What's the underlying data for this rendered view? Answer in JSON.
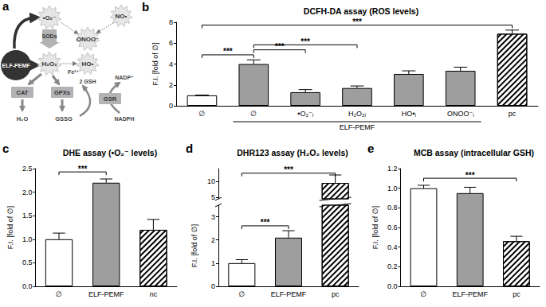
{
  "diagram": {
    "panel": "a",
    "source": "ELF-PEMF",
    "species": {
      "superoxide": "•O₂⁻",
      "peroxynitrite": "ONOO⁻",
      "nitric_oxide": "NO•",
      "hydrogen_peroxide": "H₂O₂",
      "hydroxyl": "HO•"
    },
    "enzymes": {
      "sod": "SODs",
      "cat": "CAT",
      "gpx": "GPXs",
      "gsr": "GSR"
    },
    "labels": {
      "iron": "Fe²⁺",
      "gsh": "2 GSH",
      "nadp": "NADP⁺",
      "water": "H₂O",
      "gssg": "GSSG",
      "nadph": "NADPH"
    }
  },
  "chart_data": [
    {
      "panel": "b",
      "type": "bar",
      "title": "DCFH-DA assay (ROS levels)",
      "ylabel": "F.I. [fold of ∅]",
      "categories": [
        "∅",
        "∅",
        "•O₂⁻ᵢ",
        "H₂O₂ᵢ",
        "HO•ᵢ",
        "ONOO⁻ᵢ",
        "pc"
      ],
      "values": [
        1.0,
        4.0,
        1.3,
        1.7,
        3.05,
        3.35,
        6.9
      ],
      "errors": [
        0.03,
        0.4,
        0.25,
        0.2,
        0.3,
        0.35,
        0.35
      ],
      "colors": [
        "#ffffff",
        "#9e9e9e",
        "#9e9e9e",
        "#9e9e9e",
        "#9e9e9e",
        "#9e9e9e",
        "hatched"
      ],
      "ylim": [
        0,
        8
      ],
      "yticks": [
        0,
        2,
        4,
        6,
        8
      ],
      "significance": [
        {
          "from": 0,
          "to": 1,
          "label": "***"
        },
        {
          "from": 1,
          "to": 2,
          "label": "***"
        },
        {
          "from": 1,
          "to": 3,
          "label": "***"
        },
        {
          "from": 0,
          "to": 6,
          "label": "***"
        }
      ],
      "group_label": {
        "text": "ELF-PEMF",
        "from": 1,
        "to": 5
      }
    },
    {
      "panel": "c",
      "type": "bar",
      "title": "DHE assay (•O₂⁻ levels)",
      "ylabel": "F.I. [fold of ∅]",
      "categories": [
        "∅",
        "ELF-PEMF",
        "nc"
      ],
      "values": [
        1.0,
        2.2,
        1.2
      ],
      "errors": [
        0.13,
        0.08,
        0.22
      ],
      "colors": [
        "#ffffff",
        "#9e9e9e",
        "hatched"
      ],
      "ylim": [
        0,
        2.5
      ],
      "yticks": [
        {
          "value": 0,
          "label": "0.0"
        },
        {
          "value": 0.5,
          "label": "0.5"
        },
        {
          "value": 1,
          "label": "1.0"
        },
        {
          "value": 1.5,
          "label": "1.5"
        },
        {
          "value": 2,
          "label": "2.0"
        },
        {
          "value": 2.5,
          "label": "2.5"
        }
      ],
      "significance": [
        {
          "from": 0,
          "to": 1,
          "label": "***"
        }
      ]
    },
    {
      "panel": "d",
      "type": "bar",
      "title": "DHR123 assay (H₂O₂ levels)",
      "ylabel": "F.I. [fold of ∅]",
      "categories": [
        "∅",
        "ELF-PEMF",
        "pc"
      ],
      "values": [
        1.0,
        2.1,
        9.5
      ],
      "errors": [
        0.15,
        0.3,
        2.5
      ],
      "colors": [
        "#ffffff",
        "#9e9e9e",
        "hatched"
      ],
      "ylim": [
        0,
        14
      ],
      "ybreak": [
        3.5,
        4.5
      ],
      "yticks": [
        0,
        1,
        2,
        3,
        5,
        10
      ],
      "significance": [
        {
          "from": 0,
          "to": 1,
          "label": "***"
        },
        {
          "from": 0,
          "to": 2,
          "label": "***"
        }
      ]
    },
    {
      "panel": "e",
      "type": "bar",
      "title": "MCB assay (intracellular GSH)",
      "ylabel": "F.I. [fold of ∅]",
      "categories": [
        "∅",
        "ELF-PEMF",
        "pc"
      ],
      "values": [
        1.0,
        0.95,
        0.46
      ],
      "errors": [
        0.03,
        0.06,
        0.05
      ],
      "colors": [
        "#ffffff",
        "#9e9e9e",
        "hatched"
      ],
      "ylim": [
        0,
        1.2
      ],
      "yticks": [
        {
          "value": 0,
          "label": "0.0"
        },
        {
          "value": 0.2,
          "label": "0.2"
        },
        {
          "value": 0.4,
          "label": "0.4"
        },
        {
          "value": 0.6,
          "label": "0.6"
        },
        {
          "value": 0.8,
          "label": "0.8"
        },
        {
          "value": 1,
          "label": "1.0"
        },
        {
          "value": 1.2,
          "label": "1.2"
        }
      ],
      "significance": [
        {
          "from": 0,
          "to": 2,
          "label": "***"
        }
      ]
    }
  ]
}
